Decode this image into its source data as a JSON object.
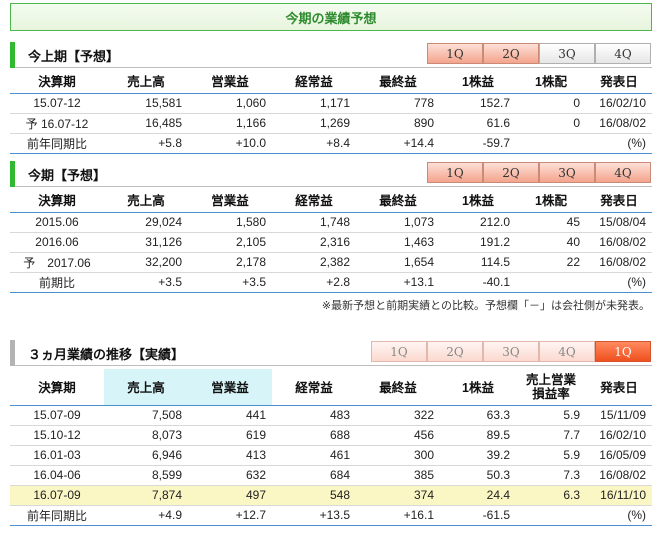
{
  "page_title": "今期の業績予想",
  "tabs_labels": [
    "1Q",
    "2Q",
    "3Q",
    "4Q"
  ],
  "tabs_transition": [
    "1Q",
    "2Q",
    "3Q",
    "4Q",
    "1Q"
  ],
  "colors": {
    "accent_green": "#31b931",
    "positive": "#e8393a",
    "negative": "#2e6ccf",
    "highlight_row": "#fbf7c4",
    "active_tab": "#f0501e"
  },
  "section1": {
    "title": "今上期【予想】",
    "headers": [
      "決算期",
      "売上高",
      "営業益",
      "経常益",
      "最終益",
      "1株益",
      "1株配",
      "発表日"
    ],
    "rows": [
      [
        "15.07-12",
        "15,581",
        "1,060",
        "1,171",
        "778",
        "152.7",
        "0",
        "16/02/10"
      ],
      [
        "予 16.07-12",
        "16,485",
        "1,166",
        "1,269",
        "890",
        "61.6",
        "0",
        "16/08/02"
      ],
      [
        "前年同期比",
        "+5.8",
        "+10.0",
        "+8.4",
        "+14.4",
        "-59.7",
        "",
        "(%)"
      ]
    ]
  },
  "section2": {
    "title": "今期【予想】",
    "headers": [
      "決算期",
      "売上高",
      "営業益",
      "経常益",
      "最終益",
      "1株益",
      "1株配",
      "発表日"
    ],
    "rows": [
      [
        "2015.06",
        "29,024",
        "1,580",
        "1,748",
        "1,073",
        "212.0",
        "45",
        "15/08/04"
      ],
      [
        "2016.06",
        "31,126",
        "2,105",
        "2,316",
        "1,463",
        "191.2",
        "40",
        "16/08/02"
      ],
      [
        "予　2017.06",
        "32,200",
        "2,178",
        "2,382",
        "1,654",
        "114.5",
        "22",
        "16/08/02"
      ],
      [
        "前期比",
        "+3.5",
        "+3.5",
        "+2.8",
        "+13.1",
        "-40.1",
        "",
        "(%)"
      ]
    ],
    "note": "※最新予想と前期実績との比較。予想欄「－」は会社側が未発表。"
  },
  "section3": {
    "title": "３ヵ月業績の推移【実績】",
    "headers": [
      "決算期",
      "売上高",
      "営業益",
      "経常益",
      "最終益",
      "1株益",
      "売上営業損益率",
      "発表日"
    ],
    "header_margin_line1": "売上営業",
    "header_margin_line2": "損益率",
    "rows": [
      [
        "15.07-09",
        "7,508",
        "441",
        "483",
        "322",
        "63.3",
        "5.9",
        "15/11/09"
      ],
      [
        "15.10-12",
        "8,073",
        "619",
        "688",
        "456",
        "89.5",
        "7.7",
        "16/02/10"
      ],
      [
        "16.01-03",
        "6,946",
        "413",
        "461",
        "300",
        "39.2",
        "5.9",
        "16/05/09"
      ],
      [
        "16.04-06",
        "8,599",
        "632",
        "684",
        "385",
        "50.3",
        "7.3",
        "16/08/02"
      ],
      [
        "16.07-09",
        "7,874",
        "497",
        "548",
        "374",
        "24.4",
        "6.3",
        "16/11/10"
      ],
      [
        "前年同期比",
        "+4.9",
        "+12.7",
        "+13.5",
        "+16.1",
        "-61.5",
        "",
        "(%)"
      ]
    ]
  }
}
